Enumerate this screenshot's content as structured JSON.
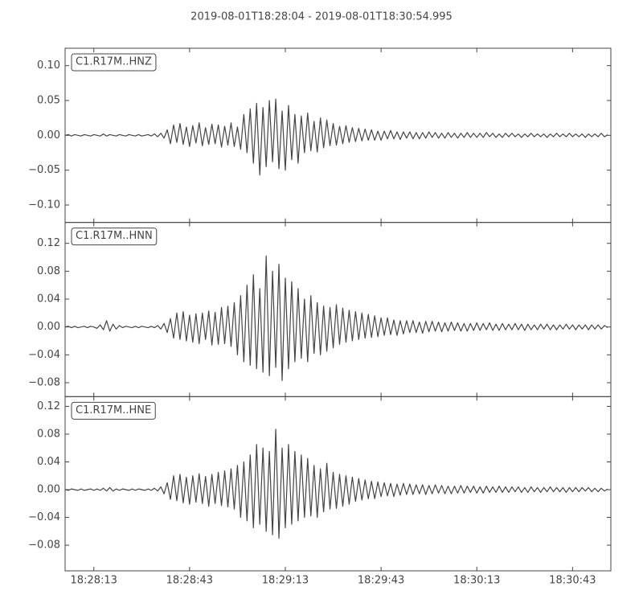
{
  "chart_data": {
    "type": "line",
    "title": "2019-08-01T18:28:04  -  2019-08-01T18:30:54.995",
    "xlim": [
      "18:28:04",
      "18:30:54.995"
    ],
    "xticks": [
      "18:28:13",
      "18:28:43",
      "18:29:13",
      "18:29:43",
      "18:30:13",
      "18:30:43"
    ],
    "x": [
      "18:28:04",
      "18:28:05",
      "18:28:06",
      "18:28:07",
      "18:28:08",
      "18:28:09",
      "18:28:10",
      "18:28:11",
      "18:28:12",
      "18:28:13",
      "18:28:14",
      "18:28:15",
      "18:28:16",
      "18:28:17",
      "18:28:18",
      "18:28:19",
      "18:28:20",
      "18:28:21",
      "18:28:22",
      "18:28:23",
      "18:28:24",
      "18:28:25",
      "18:28:26",
      "18:28:27",
      "18:28:28",
      "18:28:29",
      "18:28:30",
      "18:28:31",
      "18:28:32",
      "18:28:33",
      "18:28:34",
      "18:28:35",
      "18:28:36",
      "18:28:37",
      "18:28:38",
      "18:28:39",
      "18:28:40",
      "18:28:41",
      "18:28:42",
      "18:28:43",
      "18:28:44",
      "18:28:45",
      "18:28:46",
      "18:28:47",
      "18:28:48",
      "18:28:49",
      "18:28:50",
      "18:28:51",
      "18:28:52",
      "18:28:53",
      "18:28:54",
      "18:28:55",
      "18:28:56",
      "18:28:57",
      "18:28:58",
      "18:28:59",
      "18:29:00",
      "18:29:01",
      "18:29:02",
      "18:29:03",
      "18:29:04",
      "18:29:05",
      "18:29:06",
      "18:29:07",
      "18:29:08",
      "18:29:09",
      "18:29:10",
      "18:29:11",
      "18:29:12",
      "18:29:13",
      "18:29:14",
      "18:29:15",
      "18:29:16",
      "18:29:17",
      "18:29:18",
      "18:29:19",
      "18:29:20",
      "18:29:21",
      "18:29:22",
      "18:29:23",
      "18:29:24",
      "18:29:25",
      "18:29:26",
      "18:29:27",
      "18:29:28",
      "18:29:29",
      "18:29:30",
      "18:29:31",
      "18:29:32",
      "18:29:33",
      "18:29:34",
      "18:29:35",
      "18:29:36",
      "18:29:37",
      "18:29:38",
      "18:29:39",
      "18:29:40",
      "18:29:41",
      "18:29:42",
      "18:29:43",
      "18:29:44",
      "18:29:45",
      "18:29:46",
      "18:29:47",
      "18:29:48",
      "18:29:49",
      "18:29:50",
      "18:29:51",
      "18:29:52",
      "18:29:53",
      "18:29:54",
      "18:29:55",
      "18:29:56",
      "18:29:57",
      "18:29:58",
      "18:29:59",
      "18:30:00",
      "18:30:01",
      "18:30:02",
      "18:30:03",
      "18:30:04",
      "18:30:05",
      "18:30:06",
      "18:30:07",
      "18:30:08",
      "18:30:09",
      "18:30:10",
      "18:30:11",
      "18:30:12",
      "18:30:13",
      "18:30:14",
      "18:30:15",
      "18:30:16",
      "18:30:17",
      "18:30:18",
      "18:30:19",
      "18:30:20",
      "18:30:21",
      "18:30:22",
      "18:30:23",
      "18:30:24",
      "18:30:25",
      "18:30:26",
      "18:30:27",
      "18:30:28",
      "18:30:29",
      "18:30:30",
      "18:30:31",
      "18:30:32",
      "18:30:33",
      "18:30:34",
      "18:30:35",
      "18:30:36",
      "18:30:37",
      "18:30:38",
      "18:30:39",
      "18:30:40",
      "18:30:41",
      "18:30:42",
      "18:30:43",
      "18:30:44",
      "18:30:45",
      "18:30:46",
      "18:30:47",
      "18:30:48",
      "18:30:49",
      "18:30:50",
      "18:30:51",
      "18:30:52",
      "18:30:53",
      "18:30:54"
    ],
    "series": [
      {
        "name": "C1.R17M..HNZ",
        "color": "#444444",
        "ylim": [
          -0.125,
          0.125
        ],
        "yticks": [
          {
            "value": -0.1,
            "label": "−0.10"
          },
          {
            "value": -0.05,
            "label": "−0.05"
          },
          {
            "value": 0,
            "label": "0.00"
          },
          {
            "value": 0.05,
            "label": "0.05"
          },
          {
            "value": 0.1,
            "label": "0.10"
          }
        ],
        "values": [
          0,
          0.001,
          -0.001,
          0.001,
          0,
          -0.001,
          0.001,
          0,
          -0.001,
          0.001,
          0,
          -0.001,
          0.002,
          -0.001,
          0.001,
          0,
          -0.001,
          0.001,
          0,
          -0.001,
          0.001,
          0,
          -0.001,
          0.001,
          -0.001,
          0,
          0.001,
          -0.001,
          0.002,
          -0.002,
          0.003,
          -0.004,
          0.008,
          -0.012,
          0.015,
          -0.01,
          0.017,
          -0.013,
          0.012,
          -0.016,
          0.014,
          -0.011,
          0.018,
          -0.015,
          0.011,
          -0.013,
          0.016,
          -0.012,
          0.015,
          -0.017,
          0.013,
          -0.014,
          0.018,
          -0.016,
          0.012,
          -0.02,
          0.03,
          -0.025,
          0.038,
          -0.04,
          0.046,
          -0.057,
          0.04,
          -0.045,
          0.05,
          -0.038,
          0.052,
          -0.048,
          0.035,
          -0.05,
          0.043,
          -0.035,
          0.03,
          -0.04,
          0.028,
          -0.025,
          0.032,
          -0.022,
          0.02,
          -0.024,
          0.025,
          -0.018,
          0.022,
          -0.015,
          0.017,
          -0.014,
          0.013,
          -0.012,
          0.014,
          -0.01,
          0.011,
          -0.009,
          0.01,
          -0.008,
          0.009,
          -0.007,
          0.008,
          -0.007,
          0.006,
          -0.007,
          0.006,
          -0.005,
          0.007,
          -0.005,
          0.005,
          -0.006,
          0.005,
          -0.004,
          0.005,
          -0.005,
          0.004,
          -0.005,
          0.004,
          -0.004,
          0.005,
          -0.003,
          0.004,
          -0.004,
          0.003,
          -0.004,
          0.004,
          -0.003,
          0.003,
          -0.004,
          0.003,
          -0.003,
          0.004,
          -0.003,
          0.003,
          -0.003,
          0.003,
          -0.003,
          0.004,
          -0.002,
          0.003,
          -0.003,
          0.002,
          -0.003,
          0.003,
          -0.002,
          0.003,
          -0.002,
          0.002,
          -0.003,
          0.002,
          -0.002,
          0.003,
          -0.002,
          0.002,
          -0.002,
          0.002,
          -0.003,
          0.002,
          -0.002,
          0.003,
          -0.002,
          0.002,
          -0.002,
          0.003,
          -0.002,
          0.002,
          -0.002,
          0.002,
          -0.003,
          0.002,
          -0.002,
          0.002,
          -0.002,
          0.003,
          -0.002,
          0.001
        ]
      },
      {
        "name": "C1.R17M..HNN",
        "color": "#444444",
        "ylim": [
          -0.1,
          0.15
        ],
        "yticks": [
          {
            "value": -0.08,
            "label": "−0.08"
          },
          {
            "value": -0.04,
            "label": "−0.04"
          },
          {
            "value": 0,
            "label": "0.00"
          },
          {
            "value": 0.04,
            "label": "0.04"
          },
          {
            "value": 0.08,
            "label": "0.08"
          },
          {
            "value": 0.12,
            "label": "0.12"
          }
        ],
        "values": [
          0,
          0.001,
          -0.001,
          0.001,
          -0.001,
          0,
          0.001,
          -0.001,
          0.001,
          0,
          -0.002,
          0.003,
          -0.004,
          0.009,
          -0.006,
          0.004,
          -0.003,
          0.002,
          -0.001,
          0.001,
          0,
          -0.001,
          0.001,
          -0.001,
          0.001,
          0,
          -0.001,
          0.001,
          -0.001,
          0.002,
          -0.003,
          0.005,
          -0.008,
          0.012,
          -0.016,
          0.02,
          -0.018,
          0.022,
          -0.02,
          0.017,
          -0.022,
          0.019,
          -0.024,
          0.02,
          -0.018,
          0.023,
          -0.026,
          0.021,
          -0.025,
          0.028,
          -0.024,
          0.03,
          -0.028,
          0.035,
          -0.04,
          0.045,
          -0.05,
          0.06,
          -0.055,
          0.075,
          -0.06,
          0.055,
          -0.065,
          0.102,
          -0.07,
          0.08,
          -0.058,
          0.09,
          -0.077,
          0.07,
          -0.06,
          0.065,
          -0.05,
          0.055,
          -0.045,
          0.04,
          -0.05,
          0.045,
          -0.038,
          0.035,
          -0.04,
          0.03,
          -0.035,
          0.028,
          -0.03,
          0.032,
          -0.025,
          0.027,
          -0.022,
          0.024,
          -0.02,
          0.022,
          -0.018,
          0.02,
          -0.016,
          0.018,
          -0.015,
          0.016,
          -0.014,
          0.013,
          -0.012,
          0.013,
          -0.011,
          0.01,
          -0.012,
          0.009,
          -0.01,
          0.009,
          -0.008,
          0.009,
          -0.008,
          0.007,
          -0.009,
          0.008,
          -0.007,
          0.008,
          -0.006,
          0.007,
          -0.007,
          0.006,
          -0.006,
          0.007,
          -0.005,
          0.006,
          -0.006,
          0.005,
          -0.006,
          0.005,
          -0.005,
          0.006,
          -0.005,
          0.005,
          -0.004,
          0.006,
          -0.005,
          0.004,
          -0.005,
          0.005,
          -0.004,
          0.004,
          -0.004,
          0.005,
          -0.004,
          0.004,
          -0.005,
          0.004,
          -0.004,
          0.003,
          -0.004,
          0.004,
          -0.003,
          0.004,
          -0.004,
          0.003,
          -0.004,
          0.003,
          -0.003,
          0.004,
          -0.003,
          0.003,
          -0.004,
          0.003,
          -0.003,
          0.003,
          -0.004,
          0.003,
          -0.003,
          0.003,
          -0.003,
          0.002,
          -0.001
        ]
      },
      {
        "name": "C1.R17M..HNE",
        "color": "#444444",
        "ylim": [
          -0.117,
          0.134
        ],
        "yticks": [
          {
            "value": -0.08,
            "label": "−0.08"
          },
          {
            "value": -0.04,
            "label": "−0.04"
          },
          {
            "value": 0,
            "label": "0.00"
          },
          {
            "value": 0.04,
            "label": "0.04"
          },
          {
            "value": 0.08,
            "label": "0.08"
          },
          {
            "value": 0.12,
            "label": "0.12"
          }
        ],
        "values": [
          0,
          -0.001,
          0.001,
          0,
          -0.001,
          0.001,
          -0.001,
          0,
          0.001,
          -0.001,
          0.001,
          -0.001,
          0.002,
          -0.002,
          0.003,
          -0.002,
          0.001,
          -0.001,
          0.001,
          0,
          -0.001,
          0.001,
          -0.001,
          0.001,
          0,
          -0.001,
          0.001,
          -0.001,
          0.002,
          -0.002,
          0.004,
          -0.006,
          0.01,
          -0.014,
          0.02,
          -0.016,
          0.022,
          -0.019,
          0.018,
          -0.021,
          0.02,
          -0.018,
          0.023,
          -0.02,
          0.019,
          -0.024,
          0.022,
          -0.02,
          0.025,
          -0.023,
          0.027,
          -0.025,
          0.03,
          -0.028,
          0.035,
          -0.04,
          0.04,
          -0.045,
          0.05,
          -0.055,
          0.065,
          -0.05,
          0.06,
          -0.06,
          0.055,
          -0.065,
          0.087,
          -0.07,
          0.06,
          -0.055,
          0.065,
          -0.05,
          0.055,
          -0.045,
          0.05,
          -0.04,
          0.045,
          -0.038,
          0.035,
          -0.04,
          0.03,
          -0.032,
          0.038,
          -0.028,
          0.025,
          -0.027,
          0.022,
          -0.024,
          0.02,
          -0.021,
          0.018,
          -0.017,
          0.016,
          -0.015,
          0.014,
          -0.013,
          0.012,
          -0.013,
          0.011,
          -0.01,
          0.01,
          -0.009,
          0.009,
          -0.01,
          0.008,
          -0.008,
          0.009,
          -0.007,
          0.008,
          -0.007,
          0.007,
          -0.006,
          0.007,
          -0.007,
          0.006,
          -0.006,
          0.007,
          -0.005,
          0.006,
          -0.006,
          0.005,
          -0.006,
          0.005,
          -0.005,
          0.006,
          -0.005,
          0.005,
          -0.004,
          0.005,
          -0.005,
          0.004,
          -0.005,
          0.005,
          -0.004,
          0.004,
          -0.004,
          0.005,
          -0.004,
          0.004,
          -0.004,
          0.004,
          -0.003,
          0.004,
          -0.004,
          0.003,
          -0.004,
          0.004,
          -0.003,
          0.003,
          -0.004,
          0.003,
          -0.003,
          0.004,
          -0.003,
          0.003,
          -0.003,
          0.003,
          -0.004,
          0.003,
          -0.003,
          0.003,
          -0.003,
          0.003,
          -0.002,
          0.003,
          -0.003,
          0.002,
          -0.003,
          0.002,
          -0.002,
          0.001
        ]
      }
    ]
  }
}
